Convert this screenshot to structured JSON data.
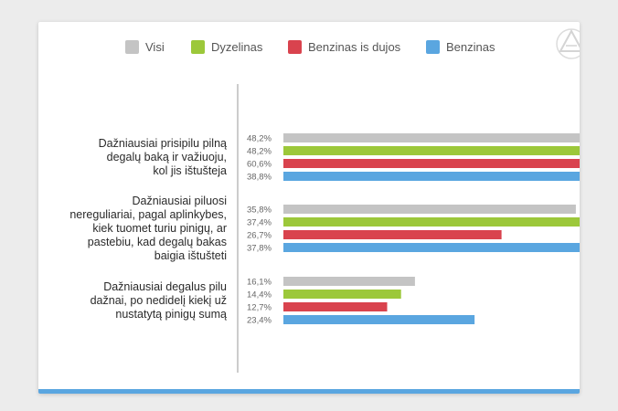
{
  "chart_data": {
    "type": "bar",
    "orientation": "horizontal",
    "title": "",
    "xlabel": "",
    "ylabel": "",
    "xlim": [
      0,
      62
    ],
    "grid": false,
    "legend_position": "top",
    "categories": [
      "Dažniausiai prisipilu pilną degalų baką ir važiuoju, kol jis ištušteja",
      "Dažniausiai piluosi nereguliariai, pagal aplinkybes, kiek tuomet turiu pinigų, ar pastebiu, kad degalų bakas baigia ištušteti",
      "Dažniausiai degalus pilu dažnai, po nedidelį kiekį už nustatytą pinigų sumą"
    ],
    "category_lines": [
      [
        "Dažniausiai prisipilu pilną",
        "degalų baką ir važiuoju,",
        "kol jis ištušteja"
      ],
      [
        "Dažniausiai piluosi",
        "nereguliariai, pagal aplinkybes,",
        "kiek tuomet turiu pinigų, ar",
        "pastebiu, kad degalų bakas",
        "baigia ištušteti"
      ],
      [
        "Dažniausiai degalus pilu",
        "dažnai, po nedidelį kiekį už",
        "nustatytą pinigų sumą"
      ]
    ],
    "series": [
      {
        "name": "Visi",
        "color": "#c4c4c4",
        "values": [
          48.2,
          35.8,
          16.1
        ],
        "labels": [
          "48,2%",
          "35,8%",
          "16,1%"
        ]
      },
      {
        "name": "Dyzelinas",
        "color": "#9cc83a",
        "values": [
          48.2,
          37.4,
          14.4
        ],
        "labels": [
          "48,2%",
          "37,4%",
          "14,4%"
        ]
      },
      {
        "name": "Benzinas is dujos",
        "color": "#d9434e",
        "values": [
          60.6,
          26.7,
          12.7
        ],
        "labels": [
          "60,6%",
          "26,7%",
          "12,7%"
        ]
      },
      {
        "name": "Benzinas",
        "color": "#5aa6e0",
        "values": [
          38.8,
          37.8,
          23.4
        ],
        "labels": [
          "38,8%",
          "37,8%",
          "23,4%"
        ]
      }
    ]
  },
  "logo": {
    "icon": "triangle-logo-icon",
    "color": "#d8d8d8"
  }
}
